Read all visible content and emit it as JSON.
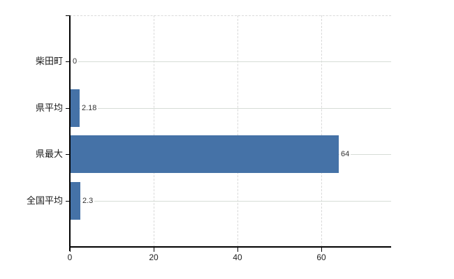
{
  "chart_data": {
    "type": "bar",
    "orientation": "horizontal",
    "title": "",
    "xlabel": "",
    "ylabel": "",
    "categories": [
      "柴田町",
      "県平均",
      "県最大",
      "全国平均"
    ],
    "values": [
      0,
      2.18,
      64,
      2.3
    ],
    "value_labels": [
      "0",
      "2.18",
      "64",
      "2.3"
    ],
    "x_ticks": [
      {
        "value": 0,
        "label": "0"
      },
      {
        "value": 20,
        "label": "20"
      },
      {
        "value": 40,
        "label": "40"
      },
      {
        "value": 60,
        "label": "60"
      }
    ],
    "xlim": [
      0,
      76.7
    ],
    "grid": true,
    "legend": false,
    "colors": {
      "bar": "#4572a7",
      "grid_horizontal": "#d6ddd6",
      "grid_vertical": "#d9d9d9",
      "plot_border_top": "#d9d9d9",
      "axis": "#000000",
      "background": "#ffffff"
    }
  }
}
